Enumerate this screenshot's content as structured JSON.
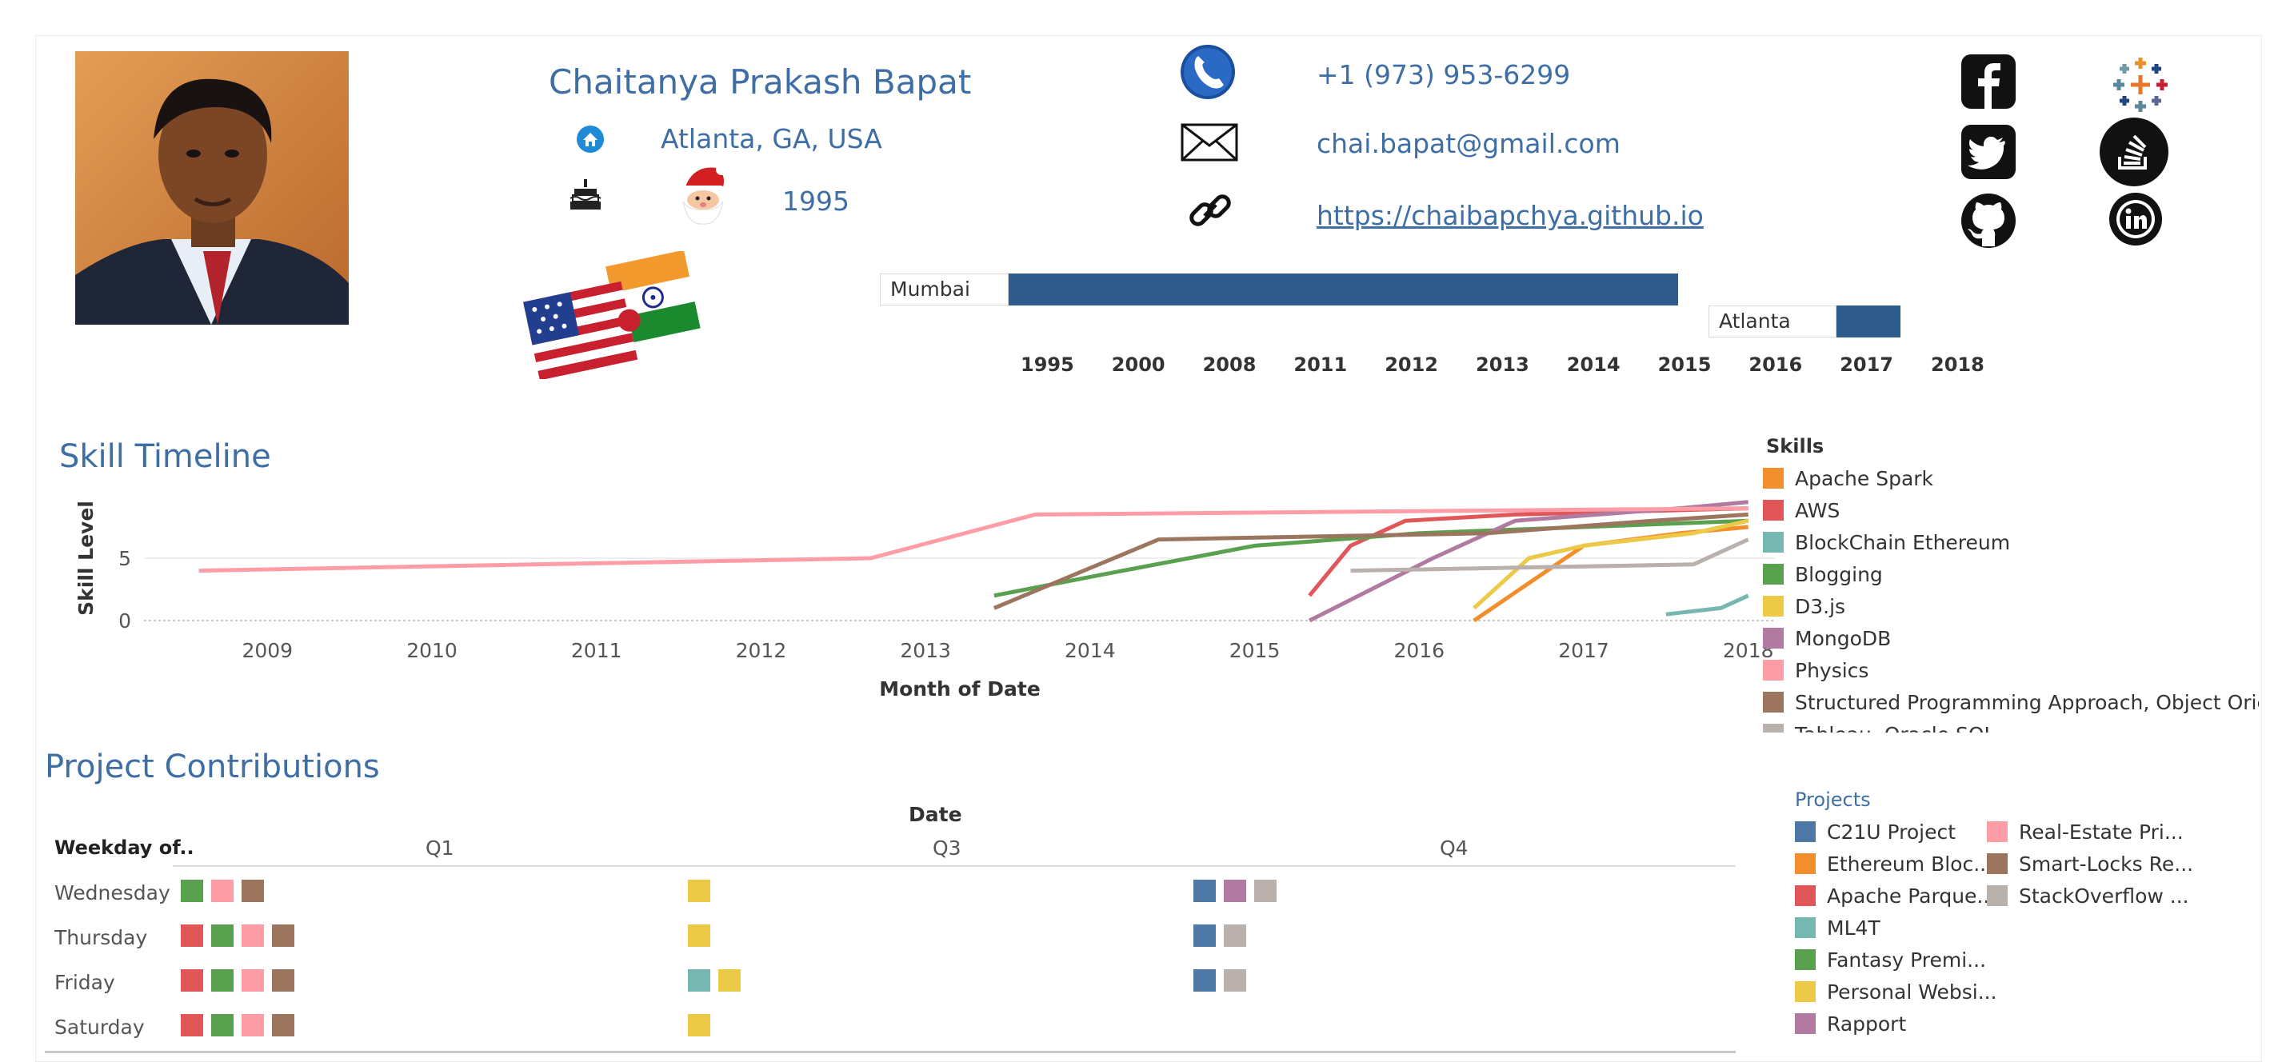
{
  "profile": {
    "name": "Chaitanya Prakash Bapat",
    "location": "Atlanta, GA, USA",
    "birth_year": "1995"
  },
  "contact": {
    "phone": "+1 (973) 953-6299",
    "email": "chai.bapat@gmail.com",
    "website": "https://chaibapchya.github.io"
  },
  "social_icons": [
    "facebook-icon",
    "tableau-icon",
    "twitter-icon",
    "stackoverflow-icon",
    "github-icon",
    "linkedin-icon"
  ],
  "residence": {
    "years": [
      "1995",
      "2000",
      "2008",
      "2011",
      "2012",
      "2013",
      "2014",
      "2015",
      "2016",
      "2017",
      "2018"
    ],
    "cities": [
      {
        "name": "Mumbai",
        "start": "1995",
        "end": "2015"
      },
      {
        "name": "Atlanta",
        "start": "2016",
        "end": "2017"
      }
    ],
    "bar_color": "#2e5b8a"
  },
  "skill_timeline": {
    "title": "Skill Timeline",
    "legend_title": "Skills",
    "chart_data": {
      "type": "line",
      "xlabel": "Month of Date",
      "ylabel": "Skill Level",
      "x_ticks": [
        "2009",
        "2010",
        "2011",
        "2012",
        "2013",
        "2014",
        "2015",
        "2016",
        "2017",
        "2018"
      ],
      "y_ticks": [
        "0",
        "5"
      ],
      "xlim": [
        "2008-04",
        "2018-03"
      ],
      "ylim": [
        0,
        10
      ],
      "series": [
        {
          "name": "Apache Spark",
          "color": "#f28e2b",
          "points": [
            [
              "2016-05",
              0
            ],
            [
              "2016-09",
              3
            ],
            [
              "2017-01",
              6
            ],
            [
              "2017-08",
              7
            ],
            [
              "2018-01",
              7.5
            ]
          ]
        },
        {
          "name": "AWS",
          "color": "#e15759",
          "points": [
            [
              "2015-05",
              2
            ],
            [
              "2015-08",
              6
            ],
            [
              "2015-12",
              8
            ],
            [
              "2016-08",
              8.5
            ],
            [
              "2018-01",
              9
            ]
          ]
        },
        {
          "name": "BlockChain Ethereum",
          "color": "#76b7b2",
          "points": [
            [
              "2017-07",
              0.5
            ],
            [
              "2017-11",
              1
            ],
            [
              "2018-01",
              2
            ]
          ]
        },
        {
          "name": "Blogging",
          "color": "#59a14f",
          "points": [
            [
              "2013-06",
              2
            ],
            [
              "2014-01",
              3.5
            ],
            [
              "2015-01",
              6
            ],
            [
              "2016-01",
              7
            ],
            [
              "2017-01",
              7.5
            ],
            [
              "2018-01",
              8
            ]
          ]
        },
        {
          "name": "D3.js",
          "color": "#edc948",
          "points": [
            [
              "2016-05",
              1
            ],
            [
              "2016-09",
              5
            ],
            [
              "2017-01",
              6
            ],
            [
              "2017-09",
              7
            ],
            [
              "2018-01",
              8
            ]
          ]
        },
        {
          "name": "MongoDB",
          "color": "#b07aa1",
          "points": [
            [
              "2015-05",
              0
            ],
            [
              "2016-02",
              5
            ],
            [
              "2016-08",
              8
            ],
            [
              "2017-08",
              9
            ],
            [
              "2018-01",
              9.5
            ]
          ]
        },
        {
          "name": "Physics",
          "color": "#ff9da7",
          "points": [
            [
              "2008-08",
              4
            ],
            [
              "2012-09",
              5
            ],
            [
              "2013-09",
              8.5
            ],
            [
              "2018-01",
              9
            ]
          ]
        },
        {
          "name": "Structured Programming Approach, Object Oriented Programming",
          "color": "#9c755f",
          "points": [
            [
              "2013-06",
              1
            ],
            [
              "2014-06",
              6.5
            ],
            [
              "2016-06",
              7
            ],
            [
              "2017-06",
              8
            ],
            [
              "2018-01",
              8.5
            ]
          ]
        },
        {
          "name": "Tableau, Oracle SQL",
          "color": "#bab0ac",
          "points": [
            [
              "2015-08",
              4
            ],
            [
              "2017-09",
              4.5
            ],
            [
              "2017-12",
              6
            ],
            [
              "2018-01",
              6.5
            ]
          ]
        }
      ]
    }
  },
  "projects": {
    "title": "Project Contributions",
    "header_date": "Date",
    "row_header": "Weekday of..",
    "columns": [
      "Q1",
      "Q3",
      "Q4"
    ],
    "rows": [
      "Wednesday",
      "Thursday",
      "Friday",
      "Saturday"
    ],
    "legend_title": "Projects",
    "legend": [
      {
        "name": "C21U Project",
        "color": "#4e79a7"
      },
      {
        "name": "Ethereum Bloc...",
        "color": "#f28e2b"
      },
      {
        "name": "Apache Parque...",
        "color": "#e15759"
      },
      {
        "name": "ML4T",
        "color": "#76b7b2"
      },
      {
        "name": "Fantasy Premi...",
        "color": "#59a14f"
      },
      {
        "name": "Personal Websi...",
        "color": "#edc948"
      },
      {
        "name": "Rapport",
        "color": "#b07aa1"
      },
      {
        "name": "Real-Estate Pri...",
        "color": "#ff9da7"
      },
      {
        "name": "Smart-Locks Re...",
        "color": "#9c755f"
      },
      {
        "name": "StackOverflow ...",
        "color": "#bab0ac"
      }
    ],
    "cells": {
      "Wednesday": {
        "Q1": [
          "Fantasy Premi...",
          "Real-Estate Pri...",
          "Smart-Locks Re..."
        ],
        "Q3": [
          "Personal Websi..."
        ],
        "Q4": [
          "C21U Project",
          "Rapport",
          "StackOverflow ..."
        ]
      },
      "Thursday": {
        "Q1": [
          "Apache Parque...",
          "Fantasy Premi...",
          "Real-Estate Pri...",
          "Smart-Locks Re..."
        ],
        "Q3": [
          "Personal Websi..."
        ],
        "Q4": [
          "C21U Project",
          "StackOverflow ..."
        ]
      },
      "Friday": {
        "Q1": [
          "Apache Parque...",
          "Fantasy Premi...",
          "Real-Estate Pri...",
          "Smart-Locks Re..."
        ],
        "Q3": [
          "ML4T",
          "Personal Websi..."
        ],
        "Q4": [
          "C21U Project",
          "StackOverflow ..."
        ]
      },
      "Saturday": {
        "Q1": [
          "Apache Parque...",
          "Fantasy Premi...",
          "Real-Estate Pri...",
          "Smart-Locks Re..."
        ],
        "Q3": [
          "Personal Websi..."
        ],
        "Q4": []
      }
    }
  }
}
